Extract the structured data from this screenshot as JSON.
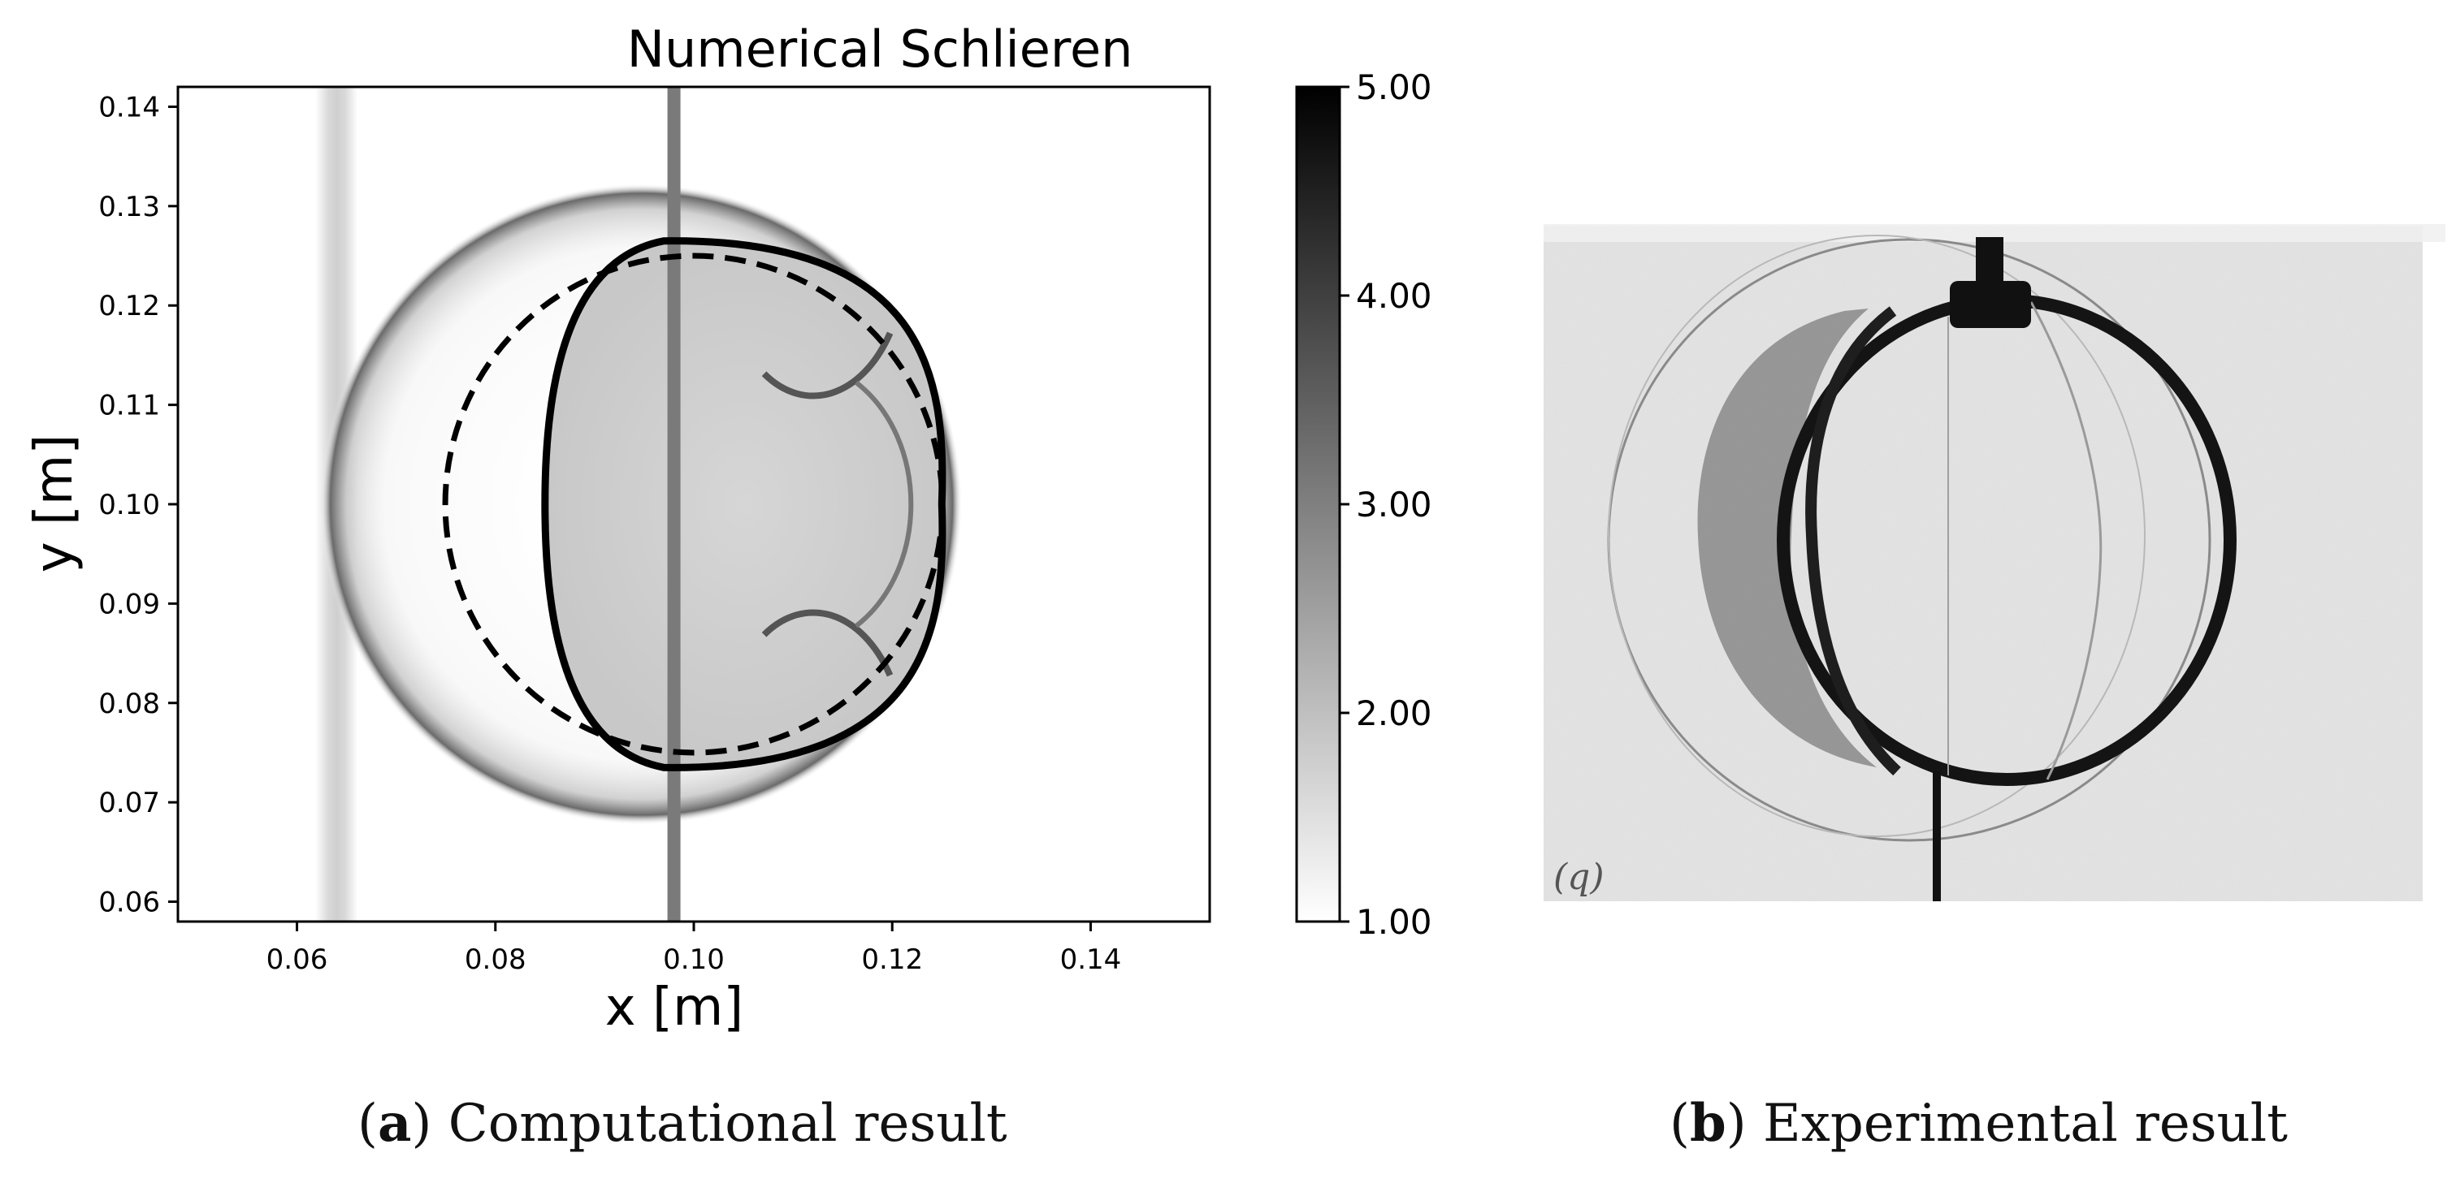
{
  "figure": {
    "panel_a": {
      "title": "Numerical Schlieren",
      "xlabel": "x [m]",
      "ylabel": "y [m]",
      "x_ticks": [
        "0.06",
        "0.08",
        "0.10",
        "0.12",
        "0.14"
      ],
      "y_ticks": [
        "0.06",
        "0.07",
        "0.08",
        "0.09",
        "0.10",
        "0.11",
        "0.12",
        "0.13",
        "0.14"
      ],
      "colorbar_ticks": [
        "1.00",
        "2.00",
        "3.00",
        "4.00",
        "5.00"
      ],
      "caption_letter": "a",
      "caption_text": "Computational result"
    },
    "panel_b": {
      "corner_label": "(q)",
      "caption_letter": "b",
      "caption_text": "Experimental result"
    }
  },
  "chart_data": {
    "type": "heatmap",
    "title": "Numerical Schlieren",
    "xlabel": "x [m]",
    "ylabel": "y [m]",
    "xlim": [
      0.048,
      0.152
    ],
    "ylim": [
      0.058,
      0.142
    ],
    "x_ticks": [
      0.06,
      0.08,
      0.1,
      0.12,
      0.14
    ],
    "y_ticks": [
      0.06,
      0.07,
      0.08,
      0.09,
      0.1,
      0.11,
      0.12,
      0.13,
      0.14
    ],
    "colorbar": {
      "range": [
        1.0,
        5.0
      ],
      "ticks": [
        1.0,
        2.0,
        3.0,
        4.0,
        5.0
      ],
      "colormap": "gray_r"
    },
    "grid": false,
    "features": {
      "initial_bubble_dashed": {
        "center": [
          0.1,
          0.1
        ],
        "radius": 0.025
      },
      "deformed_bubble_solid": {
        "left_x": 0.085,
        "right_x": 0.125,
        "top_y": 0.1265,
        "bottom_y": 0.0735
      },
      "outer_shock_circle": {
        "center": [
          0.098,
          0.1
        ],
        "radius": 0.0265
      },
      "vertical_support_x": 0.098,
      "left_band_x": 0.064
    }
  }
}
